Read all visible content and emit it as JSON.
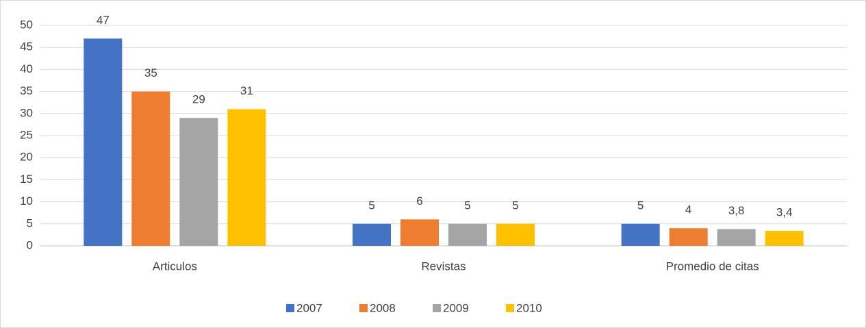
{
  "chart_data": {
    "type": "bar",
    "categories": [
      "Articulos",
      "Revistas",
      "Promedio de citas"
    ],
    "series": [
      {
        "name": "2007",
        "color": "#4472c4",
        "values": [
          47,
          5,
          5
        ]
      },
      {
        "name": "2008",
        "color": "#ed7d31",
        "values": [
          35,
          6,
          4
        ]
      },
      {
        "name": "2009",
        "color": "#a5a5a5",
        "values": [
          29,
          5,
          3.8
        ],
        "value_labels": [
          "29",
          "5",
          "3,8"
        ]
      },
      {
        "name": "2010",
        "color": "#ffc000",
        "values": [
          31,
          5,
          3.4
        ],
        "value_labels": [
          "31",
          "5",
          "3,4"
        ]
      }
    ],
    "ylim": [
      0,
      50
    ],
    "yticks": [
      0,
      5,
      10,
      15,
      20,
      25,
      30,
      35,
      40,
      45,
      50
    ],
    "grid": true,
    "legend": "bottom"
  }
}
